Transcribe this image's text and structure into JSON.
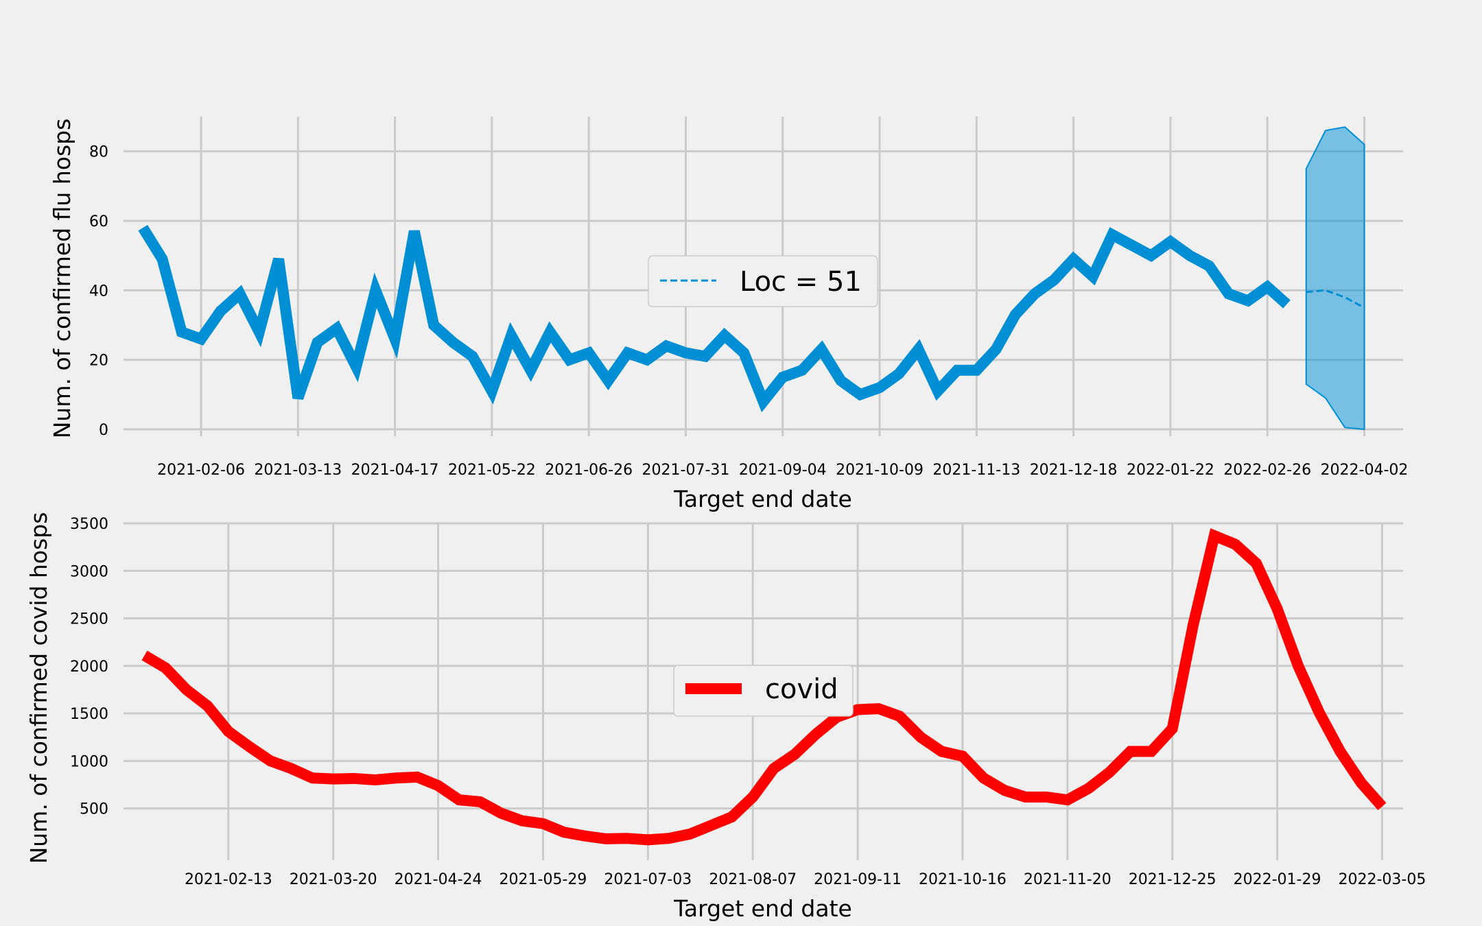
{
  "chart_data": [
    {
      "type": "line",
      "xlabel": "Target end date",
      "ylabel": "Num. of confirmed flu hosps",
      "ylim": [
        -2,
        90
      ],
      "yticks": [
        0,
        20,
        40,
        60,
        80
      ],
      "x_ticks": [
        "2021-02-06",
        "2021-03-13",
        "2021-04-17",
        "2021-05-22",
        "2021-06-26",
        "2021-07-31",
        "2021-09-04",
        "2021-10-09",
        "2021-11-13",
        "2021-12-18",
        "2022-01-22",
        "2022-02-26",
        "2022-04-02"
      ],
      "grid": true,
      "legend": {
        "label": "Loc = 51",
        "position": "center"
      },
      "series": [
        {
          "style": "solid",
          "color": "#008fd5",
          "x": [
            "2021-01-16",
            "2021-01-23",
            "2021-01-30",
            "2021-02-06",
            "2021-02-13",
            "2021-02-20",
            "2021-02-27",
            "2021-03-06",
            "2021-03-13",
            "2021-03-20",
            "2021-03-27",
            "2021-04-03",
            "2021-04-10",
            "2021-04-17",
            "2021-04-24",
            "2021-05-01",
            "2021-05-08",
            "2021-05-15",
            "2021-05-22",
            "2021-05-29",
            "2021-06-05",
            "2021-06-12",
            "2021-06-19",
            "2021-06-26",
            "2021-07-03",
            "2021-07-10",
            "2021-07-17",
            "2021-07-24",
            "2021-07-31",
            "2021-08-07",
            "2021-08-14",
            "2021-08-21",
            "2021-08-28",
            "2021-09-04",
            "2021-09-11",
            "2021-09-18",
            "2021-09-25",
            "2021-10-02",
            "2021-10-09",
            "2021-10-16",
            "2021-10-23",
            "2021-10-30",
            "2021-11-06",
            "2021-11-13",
            "2021-11-20",
            "2021-11-27",
            "2021-12-04",
            "2021-12-11",
            "2021-12-18",
            "2021-12-25",
            "2022-01-01",
            "2022-01-08",
            "2022-01-15",
            "2022-01-22",
            "2022-01-29",
            "2022-02-05",
            "2022-02-12",
            "2022-02-19",
            "2022-02-26",
            "2022-03-05"
          ],
          "values": [
            58,
            49,
            28,
            26,
            34,
            39,
            28,
            49,
            9,
            25,
            29,
            18,
            40,
            26,
            57,
            30,
            25,
            21,
            11,
            27,
            17,
            28,
            20,
            22,
            14,
            22,
            20,
            24,
            22,
            21,
            27,
            22,
            8,
            15,
            17,
            23,
            14,
            10,
            12,
            16,
            23,
            11,
            17,
            17,
            23,
            33,
            39,
            43,
            49,
            44,
            56,
            53,
            50,
            54,
            50,
            47,
            39,
            37,
            41,
            36
          ]
        },
        {
          "style": "dashed",
          "color": "#008fd5",
          "x": [
            "2022-03-12",
            "2022-03-19",
            "2022-03-26",
            "2022-04-02"
          ],
          "values": [
            39.5,
            40,
            38,
            35
          ]
        }
      ],
      "band": {
        "color": "#008fd5",
        "x": [
          "2022-03-12",
          "2022-03-19",
          "2022-03-26",
          "2022-04-02"
        ],
        "lower": [
          13,
          9,
          0.5,
          0
        ],
        "upper": [
          75,
          86,
          87,
          82
        ]
      }
    },
    {
      "type": "line",
      "xlabel": "Target end date",
      "ylabel": "Num. of confirmed covid hosps",
      "ylim": [
        100,
        3500
      ],
      "yticks": [
        500,
        1000,
        1500,
        2000,
        2500,
        3000,
        3500
      ],
      "x_ticks": [
        "2021-02-13",
        "2021-03-20",
        "2021-04-24",
        "2021-05-29",
        "2021-07-03",
        "2021-08-07",
        "2021-09-11",
        "2021-10-16",
        "2021-11-20",
        "2021-12-25",
        "2022-01-29",
        "2022-03-05"
      ],
      "grid": true,
      "legend": {
        "label": "covid",
        "position": "center"
      },
      "series": [
        {
          "name": "covid",
          "color": "#ff0000",
          "x": [
            "2021-01-16",
            "2021-01-23",
            "2021-01-30",
            "2021-02-06",
            "2021-02-13",
            "2021-02-20",
            "2021-02-27",
            "2021-03-06",
            "2021-03-13",
            "2021-03-20",
            "2021-03-27",
            "2021-04-03",
            "2021-04-10",
            "2021-04-17",
            "2021-04-24",
            "2021-05-01",
            "2021-05-08",
            "2021-05-15",
            "2021-05-22",
            "2021-05-29",
            "2021-06-05",
            "2021-06-12",
            "2021-06-19",
            "2021-06-26",
            "2021-07-03",
            "2021-07-10",
            "2021-07-17",
            "2021-07-24",
            "2021-07-31",
            "2021-08-07",
            "2021-08-14",
            "2021-08-21",
            "2021-08-28",
            "2021-09-04",
            "2021-09-11",
            "2021-09-18",
            "2021-09-25",
            "2021-10-02",
            "2021-10-09",
            "2021-10-16",
            "2021-10-23",
            "2021-10-30",
            "2021-11-06",
            "2021-11-13",
            "2021-11-20",
            "2021-11-27",
            "2021-12-04",
            "2021-12-11",
            "2021-12-18",
            "2021-12-25",
            "2022-01-01",
            "2022-01-08",
            "2022-01-15",
            "2022-01-22",
            "2022-01-29",
            "2022-02-05",
            "2022-02-12",
            "2022-02-19",
            "2022-02-26",
            "2022-03-05"
          ],
          "values": [
            2110,
            1980,
            1750,
            1580,
            1310,
            1150,
            1000,
            920,
            820,
            810,
            815,
            800,
            820,
            830,
            740,
            590,
            570,
            450,
            370,
            340,
            250,
            210,
            180,
            185,
            170,
            185,
            230,
            320,
            410,
            620,
            920,
            1070,
            1280,
            1460,
            1540,
            1550,
            1470,
            1250,
            1100,
            1050,
            820,
            690,
            620,
            620,
            590,
            710,
            880,
            1100,
            1100,
            1340,
            2440,
            3370,
            3280,
            3080,
            2600,
            2000,
            1510,
            1100,
            770,
            520
          ]
        }
      ]
    }
  ]
}
